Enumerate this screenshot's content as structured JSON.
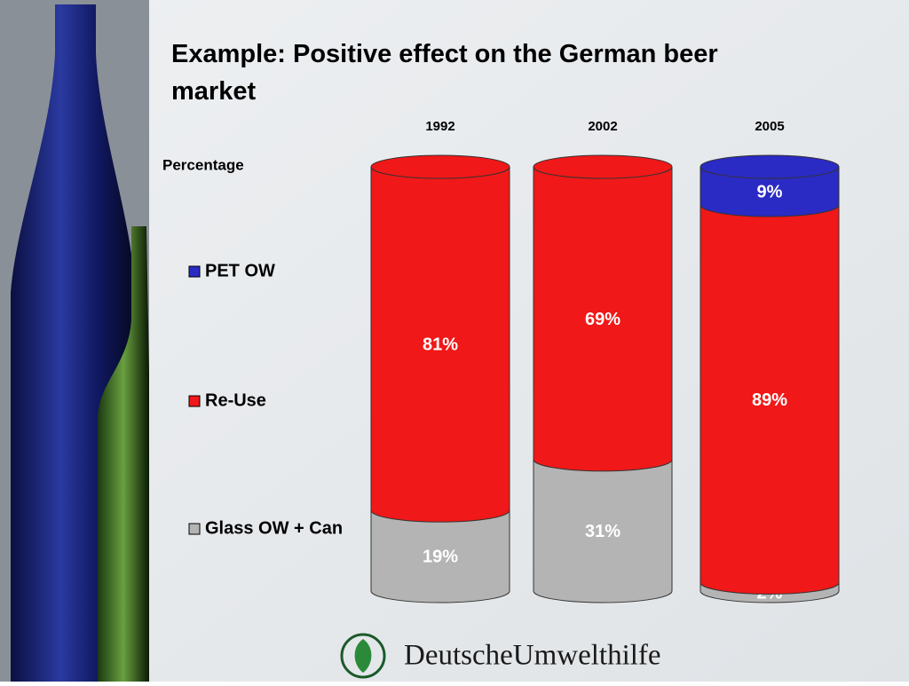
{
  "chart_data": {
    "type": "bar",
    "stacked": true,
    "title": "Example: Positive effect on the German beer market",
    "ylabel": "Percentage",
    "categories": [
      "1992",
      "2002",
      "2005"
    ],
    "ylim": [
      0,
      100
    ],
    "series": [
      {
        "name": "Glass OW + Can",
        "color": "#b4b4b4",
        "values": [
          19,
          31,
          2
        ],
        "value_labels": [
          "19%",
          "31%",
          "2%"
        ]
      },
      {
        "name": "Re-Use",
        "color": "#f01818",
        "values": [
          81,
          69,
          89
        ],
        "value_labels": [
          "81%",
          "69%",
          "89%"
        ]
      },
      {
        "name": "PET OW",
        "color": "#2a2ac4",
        "values": [
          0,
          0,
          9
        ],
        "value_labels": [
          null,
          null,
          "9%"
        ]
      }
    ]
  },
  "footer": {
    "logo": "DeutscheUmwelthilfe"
  }
}
